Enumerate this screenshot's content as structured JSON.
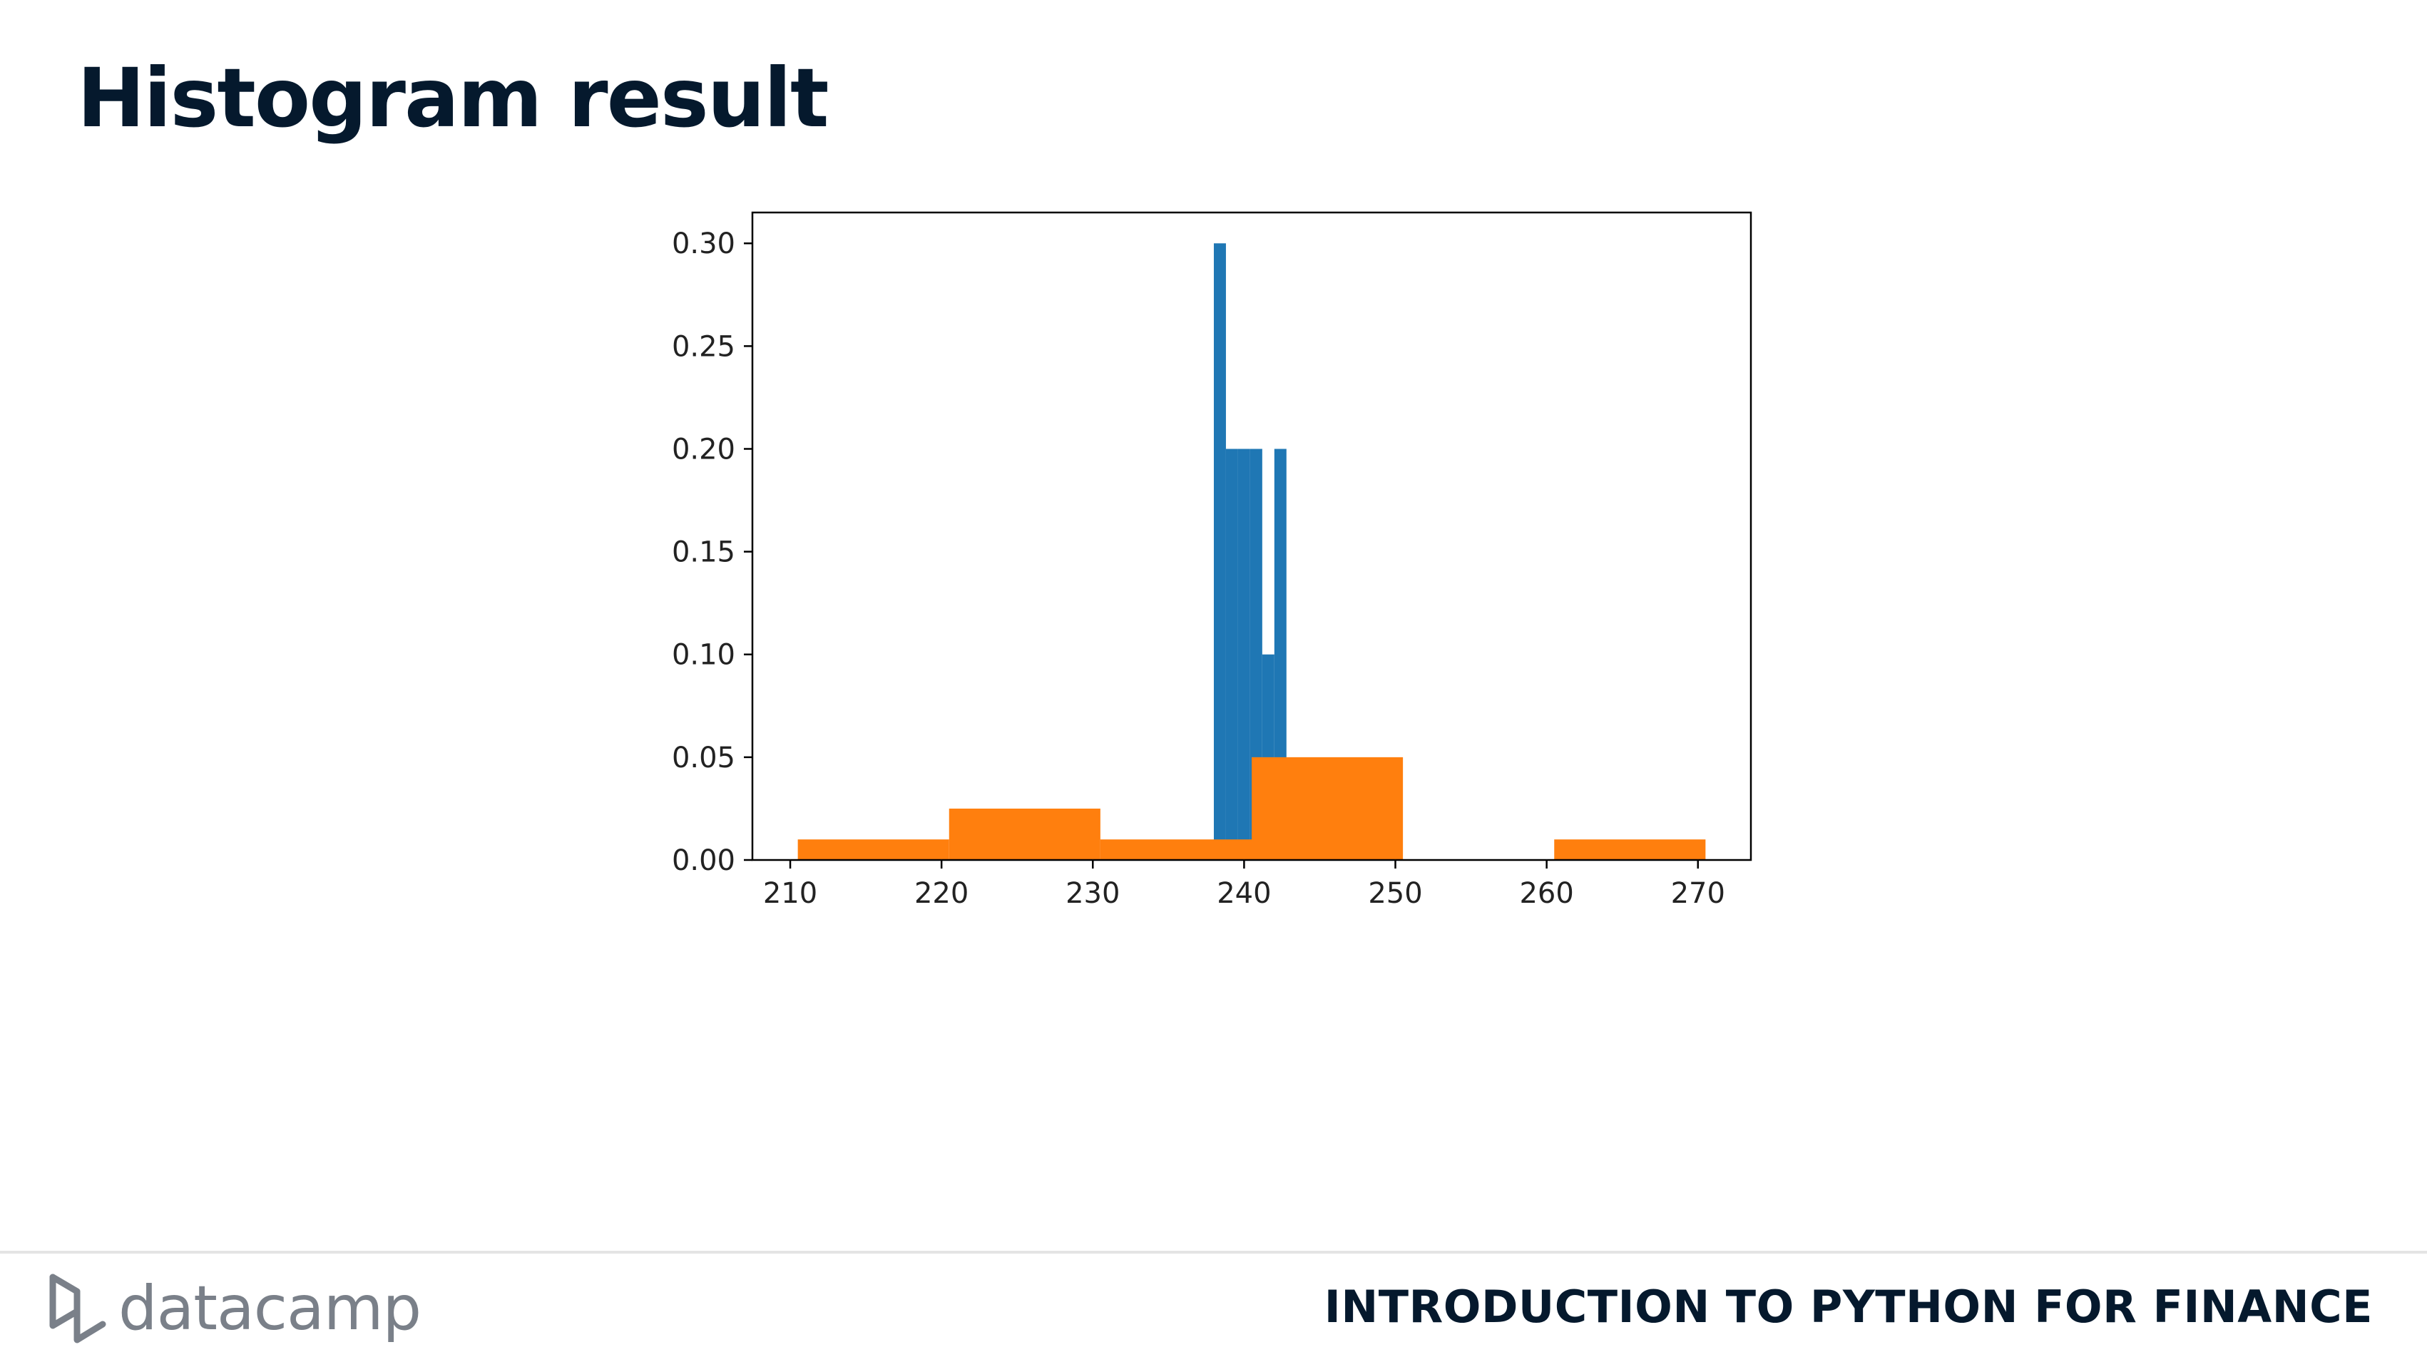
{
  "slide": {
    "title": "Histogram result",
    "footer_course": "INTRODUCTION TO PYTHON FOR FINANCE",
    "logo_text": "datacamp"
  },
  "colors": {
    "title": "#05192d",
    "series_blue": "#1f77b4",
    "series_orange": "#ff7f0e",
    "axis": "#000000",
    "logo": "#7a8089"
  },
  "chart_data": {
    "type": "bar",
    "title": "",
    "xlabel": "",
    "ylabel": "",
    "xlim": [
      207.5,
      273.5
    ],
    "ylim": [
      0,
      0.315
    ],
    "xticks": [
      210,
      220,
      230,
      240,
      250,
      260,
      270
    ],
    "yticks": [
      0.0,
      0.05,
      0.1,
      0.15,
      0.2,
      0.25,
      0.3
    ],
    "ytick_labels": [
      "0.00",
      "0.05",
      "0.10",
      "0.15",
      "0.20",
      "0.25",
      "0.30"
    ],
    "grid": false,
    "legend": "none",
    "series": [
      {
        "color": "#1f77b4",
        "bins": [
          {
            "x0": 238.0,
            "x1": 238.8,
            "value": 0.3
          },
          {
            "x0": 238.8,
            "x1": 239.6,
            "value": 0.2
          },
          {
            "x0": 239.6,
            "x1": 240.4,
            "value": 0.2
          },
          {
            "x0": 240.4,
            "x1": 241.2,
            "value": 0.2
          },
          {
            "x0": 241.2,
            "x1": 242.0,
            "value": 0.1
          },
          {
            "x0": 242.0,
            "x1": 242.8,
            "value": 0.2
          }
        ]
      },
      {
        "color": "#ff7f0e",
        "bins": [
          {
            "x0": 210.5,
            "x1": 220.5,
            "value": 0.01
          },
          {
            "x0": 220.5,
            "x1": 230.5,
            "value": 0.025
          },
          {
            "x0": 230.5,
            "x1": 240.5,
            "value": 0.01
          },
          {
            "x0": 240.5,
            "x1": 250.5,
            "value": 0.05
          },
          {
            "x0": 250.5,
            "x1": 260.5,
            "value": 0.0
          },
          {
            "x0": 260.5,
            "x1": 270.5,
            "value": 0.01
          }
        ]
      }
    ]
  }
}
